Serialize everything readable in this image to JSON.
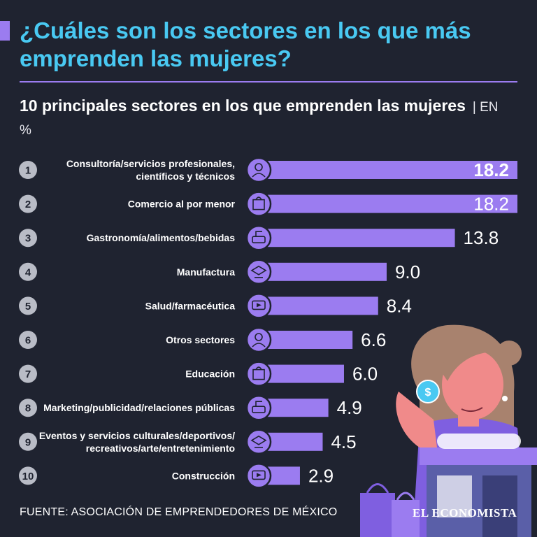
{
  "header": {
    "title": "¿Cuáles son los sectores en los que más emprenden las mujeres?",
    "subtitle": "10 principales sectores en los que emprenden las mujeres",
    "unit_label": "| EN %"
  },
  "chart_data": {
    "type": "bar",
    "orientation": "horizontal",
    "title": "10 principales sectores en los que emprenden las mujeres",
    "unit": "%",
    "ranks": [
      "1",
      "2",
      "3",
      "4",
      "5",
      "6",
      "7",
      "8",
      "9",
      "10"
    ],
    "categories": [
      [
        "Consultoría/servicios profesionales,",
        "científicos y técnicos"
      ],
      [
        "Comercio al por menor"
      ],
      [
        "Gastronomía/alimentos/bebidas"
      ],
      [
        "Manufactura"
      ],
      [
        "Salud/farmacéutica"
      ],
      [
        "Otros sectores"
      ],
      [
        "Educación"
      ],
      [
        "Marketing/publicidad/relaciones públicas"
      ],
      [
        "Eventos y servicios culturales/deportivos/",
        "recreativos/arte/entretenimiento"
      ],
      [
        "Construcción"
      ]
    ],
    "values": [
      18.2,
      18.2,
      13.8,
      9.0,
      8.4,
      6.6,
      6.0,
      4.9,
      4.5,
      2.9
    ],
    "value_labels": [
      "18.2",
      "18.2",
      "13.8",
      "9.0",
      "8.4",
      "6.6",
      "6.0",
      "4.9",
      "4.5",
      "2.9"
    ],
    "icons": [
      "consulting-icon",
      "shopping-bag-icon",
      "chef-icon",
      "manufacturing-icon",
      "doctor-icon",
      "support-agent-icon",
      "graduation-icon",
      "marketing-icon",
      "events-icon",
      "construction-worker-icon"
    ],
    "xlim": [
      0,
      18.2
    ]
  },
  "footer": {
    "source": "FUENTE: ASOCIACIÓN DE EMPRENDEDORES DE MÉXICO",
    "logo": "EL ECONOMISTA"
  },
  "colors": {
    "background": "#1f2330",
    "title": "#49c9f2",
    "bar": "#9b7cf0",
    "rank_circle": "#b9bcc6",
    "skin": "#f08a8a",
    "hair": "#a8826e"
  }
}
